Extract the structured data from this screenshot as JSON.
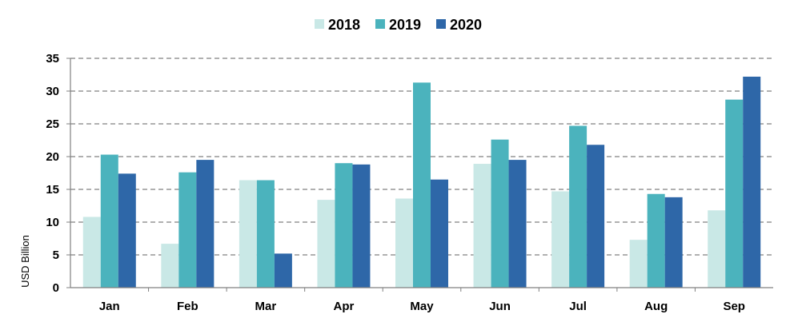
{
  "chart_data": {
    "type": "bar",
    "title": "",
    "xlabel": "",
    "ylabel": "USD Billion",
    "ylim": [
      0,
      35
    ],
    "yticks": [
      0,
      5,
      10,
      15,
      20,
      25,
      30,
      35
    ],
    "grid": true,
    "legend_position": "top-center",
    "categories": [
      "Jan",
      "Feb",
      "Mar",
      "Apr",
      "May",
      "Jun",
      "Jul",
      "Aug",
      "Sep"
    ],
    "series": [
      {
        "name": "2018",
        "color": "#c9e8e6",
        "values": [
          10.8,
          6.7,
          16.4,
          13.4,
          13.6,
          18.9,
          14.7,
          7.3,
          11.8
        ]
      },
      {
        "name": "2019",
        "color": "#4bb3bd",
        "values": [
          20.3,
          17.6,
          16.4,
          19.0,
          31.3,
          22.6,
          24.7,
          14.3,
          28.7
        ]
      },
      {
        "name": "2020",
        "color": "#2e67a8",
        "values": [
          17.4,
          19.5,
          5.2,
          18.8,
          16.5,
          19.5,
          21.8,
          13.8,
          32.2
        ]
      }
    ]
  }
}
